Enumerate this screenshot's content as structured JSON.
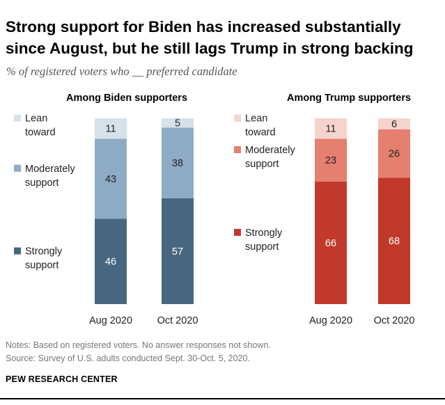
{
  "title": "Strong support for Biden has increased substantially since August, but he still lags Trump in strong backing",
  "subtitle": "% of registered voters who __ preferred candidate",
  "notes": "Notes: Based on registered voters. No answer responses not shown.",
  "source": "Source: Survey of U.S. adults conducted Sept. 30-Oct. 5, 2020.",
  "org": "PEW RESEARCH CENTER",
  "chart_data": [
    {
      "type": "bar",
      "stacked": true,
      "title": "Among Biden supporters",
      "categories": [
        "Aug 2020",
        "Oct 2020"
      ],
      "series": [
        {
          "name": "Strongly support",
          "values": [
            46,
            57
          ],
          "color": "#46677f"
        },
        {
          "name": "Moderately support",
          "values": [
            43,
            38
          ],
          "color": "#8dabc4"
        },
        {
          "name": "Lean toward",
          "values": [
            11,
            5
          ],
          "color": "#d6e1ea"
        }
      ],
      "ylim": [
        0,
        100
      ],
      "grid": false,
      "legend": "left"
    },
    {
      "type": "bar",
      "stacked": true,
      "title": "Among Trump supporters",
      "categories": [
        "Aug 2020",
        "Oct 2020"
      ],
      "series": [
        {
          "name": "Strongly support",
          "values": [
            66,
            68
          ],
          "color": "#c1392b"
        },
        {
          "name": "Moderately support",
          "values": [
            23,
            26
          ],
          "color": "#e57f70"
        },
        {
          "name": "Lean toward",
          "values": [
            11,
            6
          ],
          "color": "#f5d4cd"
        }
      ],
      "ylim": [
        0,
        100
      ],
      "grid": false,
      "legend": "left"
    }
  ]
}
